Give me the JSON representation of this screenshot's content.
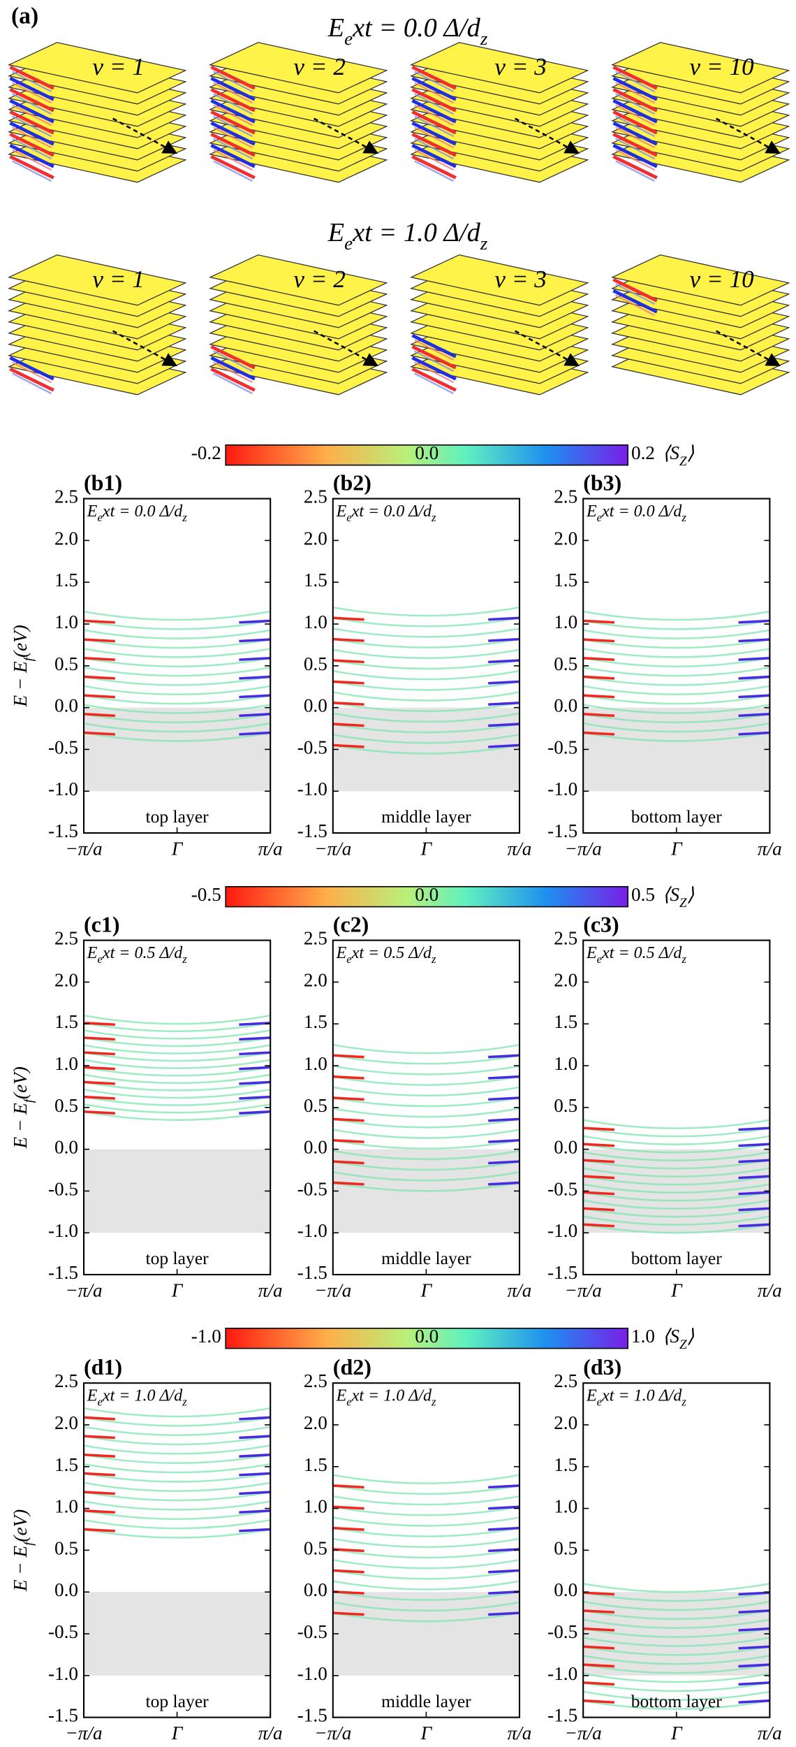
{
  "panel_a": {
    "label": "(a)",
    "rows": [
      {
        "field": "E_ext = 0.0 Δ/d_z",
        "stacks": [
          "v = 1",
          "v = 2",
          "v = 3",
          "v = 10"
        ]
      },
      {
        "field": "E_ext = 1.0 Δ/d_z",
        "stacks": [
          "v = 1",
          "v = 2",
          "v = 3",
          "v = 10"
        ]
      }
    ]
  },
  "axes": {
    "ylabel": "E − E_f(eV)",
    "yticks": [
      "2.5",
      "2.0",
      "1.5",
      "1.0",
      "0.5",
      "0.0",
      "-0.5",
      "-1.0",
      "-1.5"
    ],
    "xticks": [
      "−π/a",
      "Γ",
      "π/a"
    ]
  },
  "sections": [
    {
      "colorbar": {
        "min": "-0.2",
        "mid": "0.0",
        "max": "0.2",
        "quantity": "⟨S_Z⟩"
      },
      "panels": [
        {
          "label": "(b1)",
          "field": "E_ext = 0.0 Δ/d_z",
          "layer": "top layer"
        },
        {
          "label": "(b2)",
          "field": "E_ext = 0.0 Δ/d_z",
          "layer": "middle layer"
        },
        {
          "label": "(b3)",
          "field": "E_ext = 0.0 Δ/d_z",
          "layer": "bottom layer"
        }
      ]
    },
    {
      "colorbar": {
        "min": "-0.5",
        "mid": "0.0",
        "max": "0.5",
        "quantity": "⟨S_Z⟩"
      },
      "panels": [
        {
          "label": "(c1)",
          "field": "E_ext = 0.5 Δ/d_z",
          "layer": "top layer"
        },
        {
          "label": "(c2)",
          "field": "E_ext = 0.5 Δ/d_z",
          "layer": "middle layer"
        },
        {
          "label": "(c3)",
          "field": "E_ext = 0.5 Δ/d_z",
          "layer": "bottom layer"
        }
      ]
    },
    {
      "colorbar": {
        "min": "-1.0",
        "mid": "0.0",
        "max": "1.0",
        "quantity": "⟨S_Z⟩"
      },
      "panels": [
        {
          "label": "(d1)",
          "field": "E_ext = 1.0 Δ/d_z",
          "layer": "top layer"
        },
        {
          "label": "(d2)",
          "field": "E_ext = 1.0 Δ/d_z",
          "layer": "middle layer"
        },
        {
          "label": "(d3)",
          "field": "E_ext = 1.0 Δ/d_z",
          "layer": "bottom layer"
        }
      ]
    }
  ]
}
